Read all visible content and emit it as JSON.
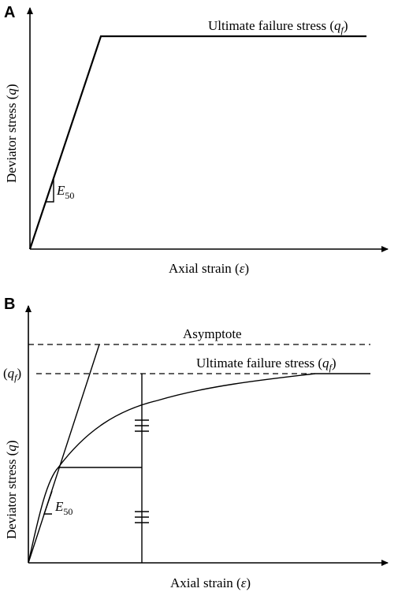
{
  "panel_a": {
    "label": "A",
    "xlabel_main": "Axial strain (",
    "xlabel_symbol": "ε",
    "xlabel_close": ")",
    "ylabel_main": "Deviator stress (",
    "ylabel_symbol": "q",
    "ylabel_close": ")",
    "failure_main": "Ultimate failure stress (",
    "failure_symbol": "q",
    "failure_sub": "f",
    "failure_close": ")",
    "modulus_symbol": "E",
    "modulus_sub": "50"
  },
  "panel_b": {
    "label": "B",
    "xlabel_main": "Axial strain (",
    "xlabel_symbol": "ε",
    "xlabel_close": ")",
    "ylabel_main": "Deviator stress (",
    "ylabel_symbol": "q",
    "ylabel_close": ")",
    "asymptote": "Asymptote",
    "failure_main": "Ultimate failure stress (",
    "failure_symbol": "q",
    "failure_sub": "f",
    "failure_close": ")",
    "qf_open": "(",
    "qf_symbol": "q",
    "qf_sub": "f",
    "qf_close": ")",
    "modulus_symbol": "E",
    "modulus_sub": "50"
  }
}
